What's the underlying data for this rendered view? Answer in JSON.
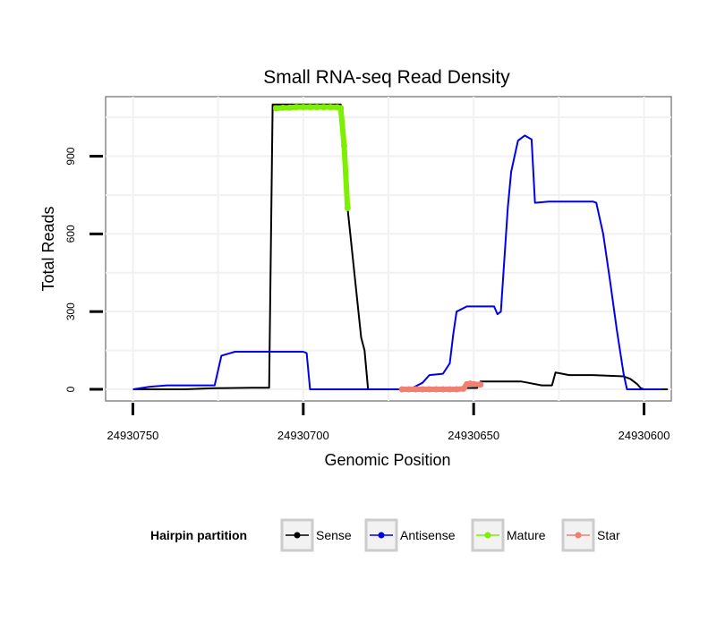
{
  "chart_data": {
    "type": "line",
    "title": "Small RNA-seq Read Density",
    "xlabel": "Genomic Position",
    "ylabel": "Total Reads",
    "x_reversed": true,
    "xlim": [
      24930758,
      24930592
    ],
    "ylim": [
      -45,
      1130
    ],
    "x_ticks": [
      24930750,
      24930700,
      24930650,
      24930600
    ],
    "x_tick_labels": [
      "24930750",
      "24930700",
      "24930650",
      "24930600"
    ],
    "y_ticks": [
      0,
      300,
      600,
      900
    ],
    "y_tick_labels": [
      "0",
      "300",
      "600",
      "900"
    ],
    "grid": true,
    "legend": {
      "title": "Hairpin partition",
      "position": "bottom",
      "entries": [
        {
          "name": "Sense",
          "color": "#000000"
        },
        {
          "name": "Antisense",
          "color": "#0000ee"
        },
        {
          "name": "Mature",
          "color": "#7cf000"
        },
        {
          "name": "Star",
          "color": "#f08070"
        }
      ]
    },
    "series": [
      {
        "name": "Sense",
        "color": "#000000",
        "points": [
          [
            24930750,
            0
          ],
          [
            24930735,
            0
          ],
          [
            24930726,
            4
          ],
          [
            24930715,
            6
          ],
          [
            24930710,
            6
          ],
          [
            24930709,
            1100
          ],
          [
            24930689,
            1100
          ],
          [
            24930688,
            950
          ],
          [
            24930687,
            700
          ],
          [
            24930685,
            450
          ],
          [
            24930683,
            200
          ],
          [
            24930682,
            150
          ],
          [
            24930681,
            0
          ],
          [
            24930672,
            0
          ],
          [
            24930655,
            0
          ],
          [
            24930652,
            5
          ],
          [
            24930649,
            5
          ],
          [
            24930648,
            30
          ],
          [
            24930640,
            30
          ],
          [
            24930636,
            30
          ],
          [
            24930634,
            25
          ],
          [
            24930630,
            15
          ],
          [
            24930627,
            15
          ],
          [
            24930626,
            65
          ],
          [
            24930624,
            60
          ],
          [
            24930622,
            55
          ],
          [
            24930615,
            55
          ],
          [
            24930606,
            50
          ],
          [
            24930604,
            40
          ],
          [
            24930602,
            20
          ],
          [
            24930601,
            5
          ],
          [
            24930600,
            0
          ],
          [
            24930593,
            0
          ]
        ]
      },
      {
        "name": "Antisense",
        "color": "#0000ee",
        "points": [
          [
            24930750,
            0
          ],
          [
            24930745,
            10
          ],
          [
            24930740,
            15
          ],
          [
            24930726,
            15
          ],
          [
            24930724,
            130
          ],
          [
            24930720,
            145
          ],
          [
            24930700,
            145
          ],
          [
            24930699,
            140
          ],
          [
            24930698,
            0
          ],
          [
            24930685,
            0
          ],
          [
            24930672,
            0
          ],
          [
            24930668,
            5
          ],
          [
            24930665,
            25
          ],
          [
            24930663,
            55
          ],
          [
            24930659,
            60
          ],
          [
            24930657,
            100
          ],
          [
            24930656,
            210
          ],
          [
            24930655,
            300
          ],
          [
            24930652,
            320
          ],
          [
            24930644,
            320
          ],
          [
            24930643,
            290
          ],
          [
            24930642,
            300
          ],
          [
            24930640,
            700
          ],
          [
            24930639,
            840
          ],
          [
            24930637,
            960
          ],
          [
            24930635,
            980
          ],
          [
            24930633,
            965
          ],
          [
            24930632,
            720
          ],
          [
            24930628,
            725
          ],
          [
            24930615,
            725
          ],
          [
            24930614,
            720
          ],
          [
            24930612,
            600
          ],
          [
            24930610,
            420
          ],
          [
            24930608,
            230
          ],
          [
            24930606,
            60
          ],
          [
            24930605,
            0
          ],
          [
            24930603,
            0
          ],
          [
            24930595,
            0
          ]
        ]
      },
      {
        "name": "Mature",
        "color": "#7cf000",
        "points": [
          [
            24930708,
            1085
          ],
          [
            24930706,
            1087
          ],
          [
            24930704,
            1088
          ],
          [
            24930702,
            1090
          ],
          [
            24930700,
            1090
          ],
          [
            24930698,
            1090
          ],
          [
            24930696,
            1090
          ],
          [
            24930694,
            1090
          ],
          [
            24930692,
            1090
          ],
          [
            24930690,
            1089
          ],
          [
            24930689,
            1086
          ],
          [
            24930688,
            940
          ],
          [
            24930687,
            700
          ]
        ]
      },
      {
        "name": "Star",
        "color": "#f08070",
        "points": [
          [
            24930671,
            0
          ],
          [
            24930669,
            0
          ],
          [
            24930667,
            0
          ],
          [
            24930665,
            0
          ],
          [
            24930663,
            0
          ],
          [
            24930661,
            0
          ],
          [
            24930659,
            0
          ],
          [
            24930657,
            0
          ],
          [
            24930655,
            0
          ],
          [
            24930653,
            2
          ],
          [
            24930652,
            20
          ],
          [
            24930651,
            22
          ],
          [
            24930650,
            20
          ],
          [
            24930648,
            18
          ]
        ]
      }
    ]
  }
}
